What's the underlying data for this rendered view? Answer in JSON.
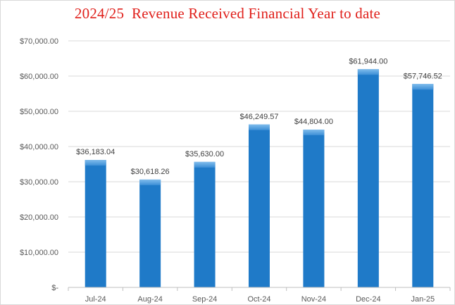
{
  "chart_data": {
    "type": "bar",
    "title": "2024/25  Revenue Received Financial Year to date",
    "categories": [
      "Jul-24",
      "Aug-24",
      "Sep-24",
      "Oct-24",
      "Nov-24",
      "Dec-24",
      "Jan-25"
    ],
    "values": [
      36183.04,
      30618.26,
      35630.0,
      46249.57,
      44804.0,
      61944.0,
      57746.52
    ],
    "data_labels": [
      "$36,183.04",
      "$30,618.26",
      "$35,630.00",
      "$46,249.57",
      "$44,804.00",
      "$61,944.00",
      "$57,746.52"
    ],
    "y_ticks": [
      0,
      10000,
      20000,
      30000,
      40000,
      50000,
      60000,
      70000
    ],
    "y_tick_labels": [
      "$-",
      "$10,000.00",
      "$20,000.00",
      "$30,000.00",
      "$40,000.00",
      "$50,000.00",
      "$60,000.00",
      "$70,000.00"
    ],
    "ylim": [
      0,
      70000
    ],
    "xlabel": "",
    "ylabel": "",
    "grid": true,
    "legend": "none",
    "colors": {
      "bar": "#1f7ac8",
      "bar_top": "#5aa6e4",
      "grid": "#d9d9d9",
      "axis": "#bfbfbf",
      "title": "#e0201b"
    }
  }
}
